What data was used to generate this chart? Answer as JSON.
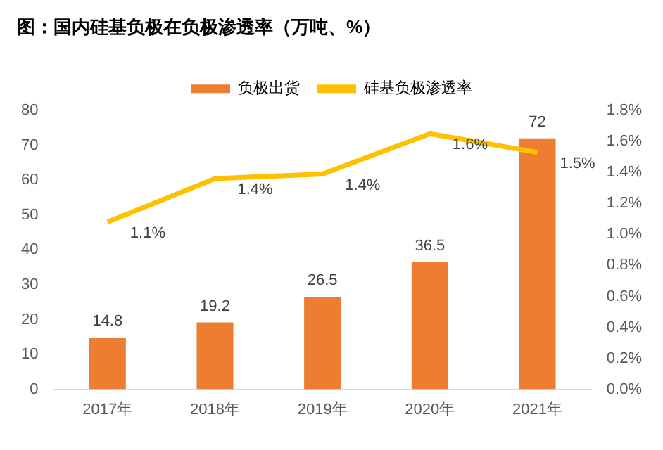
{
  "chart_data": {
    "type": "bar",
    "title": "图：国内硅基负极在负极渗透率（万吨、%）",
    "categories": [
      "2017年",
      "2018年",
      "2019年",
      "2020年",
      "2021年"
    ],
    "series": [
      {
        "name": "负极出货",
        "color": "#ed7d31",
        "values": [
          14.8,
          19.2,
          26.5,
          36.5,
          72
        ],
        "value_labels": [
          "14.8",
          "19.2",
          "26.5",
          "36.5",
          "72"
        ]
      },
      {
        "name": "硅基负极渗透率",
        "type": "line",
        "axis": "y2",
        "color": "#ffc000",
        "values": [
          1.08,
          1.36,
          1.39,
          1.65,
          1.53
        ],
        "value_labels": [
          "1.1%",
          "1.4%",
          "1.4%",
          "1.6%",
          "1.5%"
        ]
      }
    ],
    "ylim": [
      0,
      80
    ],
    "yticks": [
      0,
      10,
      20,
      30,
      40,
      50,
      60,
      70,
      80
    ],
    "y2lim": [
      0,
      1.8
    ],
    "y2ticks": [
      {
        "value": 0,
        "label": "0.0%"
      },
      {
        "value": 0.2,
        "label": "0.2%"
      },
      {
        "value": 0.4,
        "label": "0.4%"
      },
      {
        "value": 0.6,
        "label": "0.6%"
      },
      {
        "value": 0.8,
        "label": "0.8%"
      },
      {
        "value": 1.0,
        "label": "1.0%"
      },
      {
        "value": 1.2,
        "label": "1.2%"
      },
      {
        "value": 1.4,
        "label": "1.4%"
      },
      {
        "value": 1.6,
        "label": "1.6%"
      },
      {
        "value": 1.8,
        "label": "1.8%"
      }
    ],
    "grid": false,
    "legend": "top",
    "marker": "none",
    "line_style": "solid"
  }
}
